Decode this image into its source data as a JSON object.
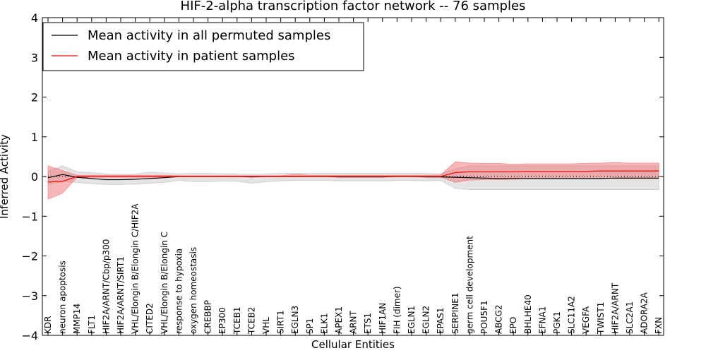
{
  "chart_data": {
    "type": "line",
    "title": "HIF-2-alpha transcription factor network -- 76 samples",
    "xlabel": "Cellular Entities",
    "ylabel": "Inferred Activity",
    "ylim": [
      -4,
      4
    ],
    "yticks": [
      -4,
      -3,
      -2,
      -1,
      0,
      1,
      2,
      3,
      4
    ],
    "ytick_labels": [
      "−4",
      "−3",
      "−2",
      "−1",
      "0",
      "1",
      "2",
      "3",
      "4"
    ],
    "legend_position": "top-left",
    "categories": [
      "KDR",
      "neuron apoptosis",
      "MMP14",
      "FLT1",
      "HIF2A/ARNT/Cbp/p300",
      "HIF2A/ARNT/SIRT1",
      "VHL/Elongin B/Elongin C/HIF2A",
      "CITED2",
      "VHL/Elongin B/Elongin C",
      "response to hypoxia",
      "oxygen homeostasis",
      "CREBBP",
      "EP300",
      "TCEB1",
      "TCEB2",
      "VHL",
      "SIRT1",
      "EGLN3",
      "SP1",
      "ELK1",
      "APEX1",
      "ARNT",
      "ETS1",
      "HIF1AN",
      "FIH (dimer)",
      "EGLN1",
      "EGLN2",
      "EPAS1",
      "SERPINE1",
      "germ cell development",
      "POU5F1",
      "ABCG2",
      "EPO",
      "BHLHE40",
      "EFNA1",
      "PGK1",
      "SLC11A2",
      "VEGFA",
      "TWIST1",
      "HIF2A/ARNT",
      "SLC2A1",
      "ADORA2A",
      "FXN"
    ],
    "series": [
      {
        "name": "Mean activity in all permuted samples",
        "color": "#000000",
        "band_color": "#bbbbbb",
        "values": [
          -0.03,
          0.05,
          -0.02,
          -0.05,
          -0.08,
          -0.08,
          -0.07,
          -0.05,
          -0.03,
          0.0,
          0.0,
          0.0,
          0.0,
          0.0,
          -0.01,
          0.0,
          0.0,
          0.0,
          0.0,
          0.0,
          -0.01,
          -0.01,
          -0.01,
          -0.01,
          0.0,
          0.0,
          -0.01,
          -0.01,
          -0.02,
          -0.03,
          -0.04,
          -0.05,
          -0.05,
          -0.05,
          -0.05,
          -0.05,
          -0.05,
          -0.05,
          -0.05,
          -0.04,
          -0.04,
          -0.04,
          -0.04
        ],
        "lower": [
          -0.2,
          -0.13,
          -0.15,
          -0.18,
          -0.2,
          -0.2,
          -0.19,
          -0.17,
          -0.15,
          -0.1,
          -0.13,
          -0.13,
          -0.11,
          -0.12,
          -0.17,
          -0.13,
          -0.11,
          -0.1,
          -0.1,
          -0.1,
          -0.11,
          -0.11,
          -0.11,
          -0.11,
          -0.1,
          -0.1,
          -0.11,
          -0.1,
          -0.3,
          -0.33,
          -0.33,
          -0.33,
          -0.33,
          -0.33,
          -0.33,
          -0.33,
          -0.33,
          -0.33,
          -0.33,
          -0.33,
          -0.33,
          -0.33,
          -0.33
        ],
        "upper": [
          0.13,
          0.27,
          0.12,
          0.1,
          0.07,
          0.06,
          0.06,
          0.11,
          0.09,
          0.07,
          0.08,
          0.08,
          0.07,
          0.07,
          0.06,
          0.07,
          0.08,
          0.08,
          0.08,
          0.08,
          0.08,
          0.08,
          0.08,
          0.08,
          0.08,
          0.08,
          0.08,
          0.07,
          0.19,
          0.27,
          0.27,
          0.27,
          0.27,
          0.27,
          0.27,
          0.27,
          0.27,
          0.27,
          0.27,
          0.27,
          0.27,
          0.27,
          0.27
        ]
      },
      {
        "name": "Mean activity in patient samples",
        "color": "#ff0000",
        "band_color": "#f07070",
        "values": [
          -0.14,
          -0.12,
          0.0,
          0.0,
          0.0,
          0.0,
          0.0,
          0.0,
          0.0,
          0.0,
          0.0,
          0.0,
          0.0,
          0.0,
          0.0,
          0.0,
          0.0,
          0.0,
          0.0,
          0.0,
          0.0,
          0.0,
          0.0,
          0.0,
          0.0,
          0.0,
          0.0,
          0.0,
          0.1,
          0.12,
          0.12,
          0.12,
          0.12,
          0.13,
          0.13,
          0.13,
          0.13,
          0.13,
          0.14,
          0.14,
          0.14,
          0.14,
          0.14
        ],
        "lower": [
          -0.57,
          -0.42,
          -0.02,
          -0.02,
          -0.02,
          -0.02,
          -0.02,
          -0.02,
          -0.02,
          -0.01,
          -0.01,
          -0.01,
          -0.01,
          -0.01,
          -0.01,
          -0.01,
          -0.01,
          -0.01,
          -0.01,
          -0.01,
          -0.01,
          -0.01,
          -0.01,
          -0.01,
          -0.01,
          -0.01,
          -0.01,
          -0.01,
          -0.15,
          -0.09,
          -0.08,
          -0.08,
          -0.07,
          -0.05,
          -0.04,
          -0.04,
          -0.04,
          -0.04,
          -0.04,
          -0.05,
          -0.05,
          -0.05,
          -0.05
        ],
        "upper": [
          0.27,
          0.15,
          0.03,
          0.03,
          0.03,
          0.03,
          0.03,
          0.03,
          0.03,
          0.02,
          0.02,
          0.02,
          0.02,
          0.02,
          0.02,
          0.02,
          0.02,
          0.05,
          0.03,
          0.03,
          0.03,
          0.03,
          0.03,
          0.03,
          0.03,
          0.03,
          0.03,
          0.04,
          0.37,
          0.34,
          0.33,
          0.33,
          0.31,
          0.32,
          0.32,
          0.32,
          0.32,
          0.33,
          0.34,
          0.35,
          0.34,
          0.34,
          0.34
        ]
      }
    ],
    "zero_line": {
      "style": "dotted",
      "value": 0
    }
  }
}
